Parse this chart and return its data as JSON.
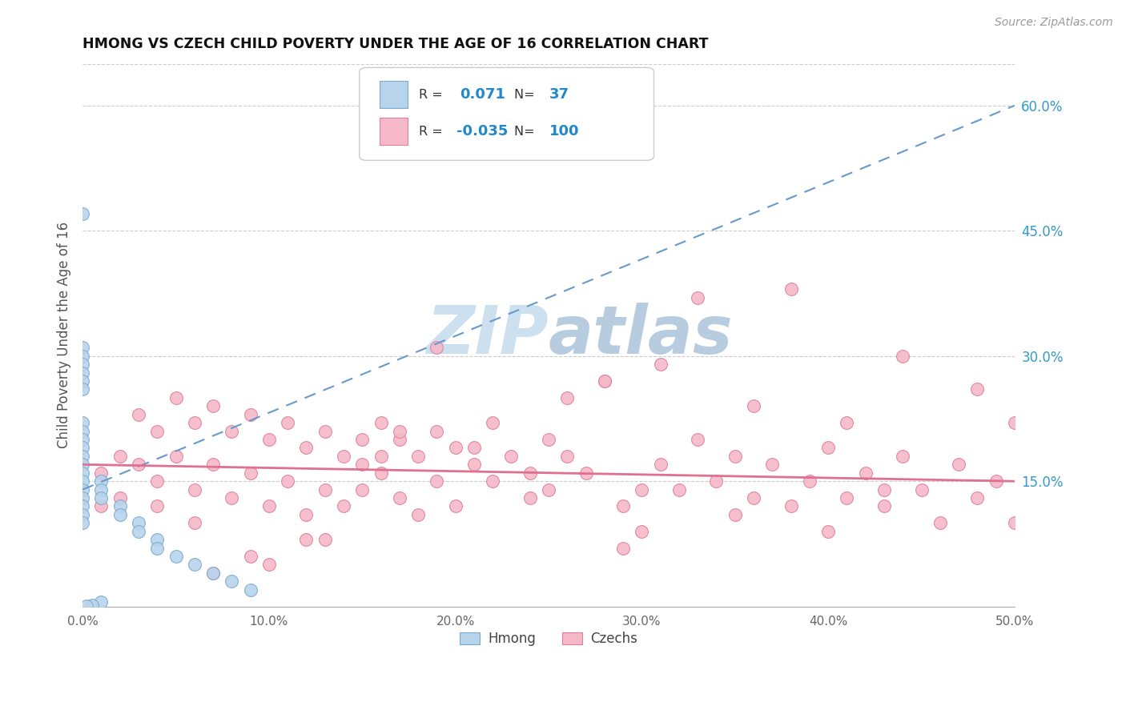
{
  "title": "HMONG VS CZECH CHILD POVERTY UNDER THE AGE OF 16 CORRELATION CHART",
  "source": "Source: ZipAtlas.com",
  "ylabel": "Child Poverty Under the Age of 16",
  "xlim": [
    0.0,
    0.5
  ],
  "ylim": [
    0.0,
    0.65
  ],
  "xtick_vals": [
    0.0,
    0.1,
    0.2,
    0.3,
    0.4,
    0.5
  ],
  "xticklabels": [
    "0.0%",
    "10.0%",
    "20.0%",
    "30.0%",
    "40.0%",
    "50.0%"
  ],
  "yticks_right": [
    0.15,
    0.3,
    0.45,
    0.6
  ],
  "ytick_labels_right": [
    "15.0%",
    "30.0%",
    "45.0%",
    "60.0%"
  ],
  "hmong_R": 0.071,
  "hmong_N": 37,
  "czech_R": -0.035,
  "czech_N": 100,
  "hmong_color": "#b8d4ec",
  "hmong_edge_color": "#7aaad0",
  "czech_color": "#f5b8c8",
  "czech_edge_color": "#e0809a",
  "hmong_line_color": "#6699cc",
  "czech_line_color": "#e07090",
  "watermark_zip": "ZIP",
  "watermark_atlas": "atlas",
  "watermark_color_zip": "#c8dff0",
  "watermark_color_atlas": "#c0d8e8",
  "legend_R_color": "#2288cc",
  "legend_N_color": "#2288cc",
  "hmong_x": [
    0.0,
    0.0,
    0.0,
    0.0,
    0.0,
    0.0,
    0.0,
    0.0,
    0.0,
    0.0,
    0.0,
    0.0,
    0.0,
    0.0,
    0.0,
    0.0,
    0.0,
    0.0,
    0.0,
    0.0,
    0.01,
    0.01,
    0.01,
    0.02,
    0.02,
    0.03,
    0.03,
    0.04,
    0.04,
    0.05,
    0.06,
    0.07,
    0.08,
    0.09,
    0.01,
    0.005,
    0.002
  ],
  "hmong_y": [
    0.47,
    0.31,
    0.3,
    0.29,
    0.28,
    0.27,
    0.26,
    0.22,
    0.21,
    0.2,
    0.19,
    0.18,
    0.17,
    0.16,
    0.15,
    0.14,
    0.13,
    0.12,
    0.11,
    0.1,
    0.15,
    0.14,
    0.13,
    0.12,
    0.11,
    0.1,
    0.09,
    0.08,
    0.07,
    0.06,
    0.05,
    0.04,
    0.03,
    0.02,
    0.005,
    0.002,
    0.001
  ],
  "czech_x": [
    0.01,
    0.01,
    0.02,
    0.02,
    0.03,
    0.03,
    0.04,
    0.04,
    0.05,
    0.05,
    0.06,
    0.06,
    0.07,
    0.07,
    0.08,
    0.08,
    0.09,
    0.09,
    0.1,
    0.1,
    0.11,
    0.11,
    0.12,
    0.12,
    0.13,
    0.13,
    0.14,
    0.14,
    0.15,
    0.15,
    0.16,
    0.16,
    0.17,
    0.17,
    0.18,
    0.18,
    0.19,
    0.19,
    0.2,
    0.2,
    0.21,
    0.22,
    0.23,
    0.24,
    0.25,
    0.25,
    0.26,
    0.27,
    0.28,
    0.29,
    0.3,
    0.3,
    0.31,
    0.32,
    0.33,
    0.34,
    0.35,
    0.36,
    0.37,
    0.38,
    0.39,
    0.4,
    0.4,
    0.41,
    0.42,
    0.43,
    0.44,
    0.45,
    0.46,
    0.47,
    0.48,
    0.49,
    0.5,
    0.5,
    0.28,
    0.19,
    0.33,
    0.1,
    0.15,
    0.22,
    0.07,
    0.04,
    0.13,
    0.26,
    0.38,
    0.44,
    0.31,
    0.17,
    0.09,
    0.36,
    0.24,
    0.41,
    0.06,
    0.16,
    0.29,
    0.48,
    0.35,
    0.21,
    0.12,
    0.43
  ],
  "czech_y": [
    0.16,
    0.12,
    0.18,
    0.13,
    0.23,
    0.17,
    0.21,
    0.15,
    0.25,
    0.18,
    0.22,
    0.14,
    0.24,
    0.17,
    0.21,
    0.13,
    0.23,
    0.16,
    0.2,
    0.12,
    0.22,
    0.15,
    0.19,
    0.11,
    0.21,
    0.14,
    0.18,
    0.12,
    0.2,
    0.14,
    0.22,
    0.16,
    0.2,
    0.13,
    0.18,
    0.11,
    0.21,
    0.15,
    0.19,
    0.12,
    0.17,
    0.15,
    0.18,
    0.13,
    0.2,
    0.14,
    0.18,
    0.16,
    0.27,
    0.12,
    0.14,
    0.09,
    0.17,
    0.14,
    0.2,
    0.15,
    0.18,
    0.13,
    0.17,
    0.12,
    0.15,
    0.19,
    0.09,
    0.22,
    0.16,
    0.12,
    0.18,
    0.14,
    0.1,
    0.17,
    0.13,
    0.15,
    0.1,
    0.22,
    0.27,
    0.31,
    0.37,
    0.05,
    0.17,
    0.22,
    0.04,
    0.12,
    0.08,
    0.25,
    0.38,
    0.3,
    0.29,
    0.21,
    0.06,
    0.24,
    0.16,
    0.13,
    0.1,
    0.18,
    0.07,
    0.26,
    0.11,
    0.19,
    0.08,
    0.14
  ]
}
